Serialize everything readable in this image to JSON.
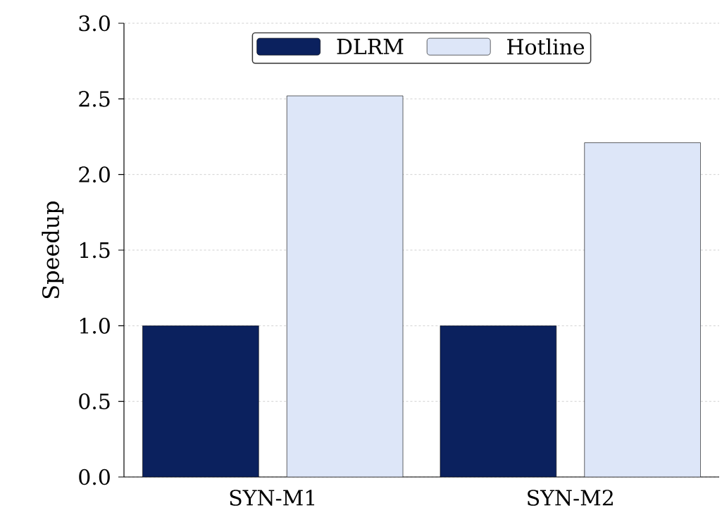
{
  "chart_data": {
    "type": "bar",
    "categories": [
      "SYN-M1",
      "SYN-M2"
    ],
    "ylabel": "Speedup",
    "series": [
      {
        "name": "DLRM",
        "color": "#0b215e",
        "values": [
          1.0,
          1.0
        ]
      },
      {
        "name": "Hotline",
        "color": "#dde6f8",
        "values": [
          2.52,
          2.21
        ]
      }
    ],
    "ylim": [
      0,
      3
    ],
    "yticks": [
      {
        "value": 0,
        "label": "0.0"
      },
      0.5,
      {
        "value": 1,
        "label": "1.0"
      },
      1.5,
      {
        "value": 2,
        "label": "2.0"
      },
      2.5,
      {
        "value": 3,
        "label": "3.0"
      }
    ],
    "grid": "y",
    "legend": "top"
  }
}
